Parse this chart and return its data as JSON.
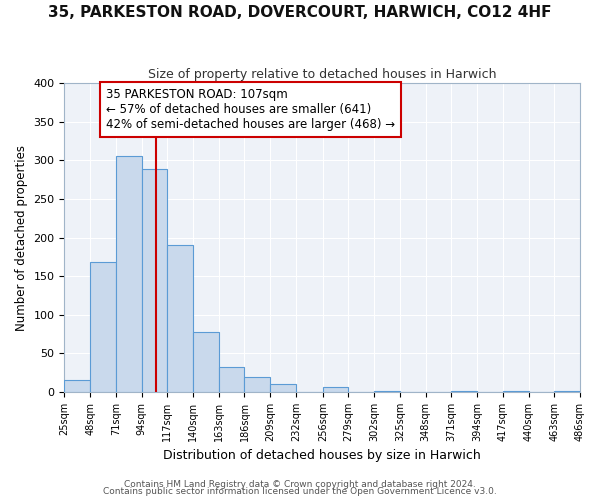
{
  "title": "35, PARKESTON ROAD, DOVERCOURT, HARWICH, CO12 4HF",
  "subtitle": "Size of property relative to detached houses in Harwich",
  "xlabel": "Distribution of detached houses by size in Harwich",
  "ylabel": "Number of detached properties",
  "bar_edges": [
    25,
    48,
    71,
    94,
    117,
    140,
    163,
    186,
    209,
    232,
    256,
    279,
    302,
    325,
    348,
    371,
    394,
    417,
    440,
    463,
    486
  ],
  "bar_heights": [
    15,
    168,
    305,
    289,
    191,
    78,
    32,
    19,
    10,
    0,
    6,
    0,
    2,
    0,
    0,
    2,
    0,
    2,
    0,
    2
  ],
  "bar_color": "#c9d9ec",
  "bar_edge_color": "#5b9bd5",
  "property_line_x": 107,
  "property_line_color": "#cc0000",
  "ylim": [
    0,
    400
  ],
  "yticks": [
    0,
    50,
    100,
    150,
    200,
    250,
    300,
    350,
    400
  ],
  "annotation_title": "35 PARKESTON ROAD: 107sqm",
  "annotation_line1": "← 57% of detached houses are smaller (641)",
  "annotation_line2": "42% of semi-detached houses are larger (468) →",
  "annotation_box_color": "#cc0000",
  "footer_line1": "Contains HM Land Registry data © Crown copyright and database right 2024.",
  "footer_line2": "Contains public sector information licensed under the Open Government Licence v3.0.",
  "tick_labels": [
    "25sqm",
    "48sqm",
    "71sqm",
    "94sqm",
    "117sqm",
    "140sqm",
    "163sqm",
    "186sqm",
    "209sqm",
    "232sqm",
    "256sqm",
    "279sqm",
    "302sqm",
    "325sqm",
    "348sqm",
    "371sqm",
    "394sqm",
    "417sqm",
    "440sqm",
    "463sqm",
    "486sqm"
  ],
  "bg_color": "#ffffff",
  "plot_bg_color": "#eef2f8",
  "grid_color": "#ffffff",
  "title_fontsize": 11,
  "subtitle_fontsize": 9,
  "annotation_fontsize": 8.5,
  "footer_fontsize": 6.5
}
